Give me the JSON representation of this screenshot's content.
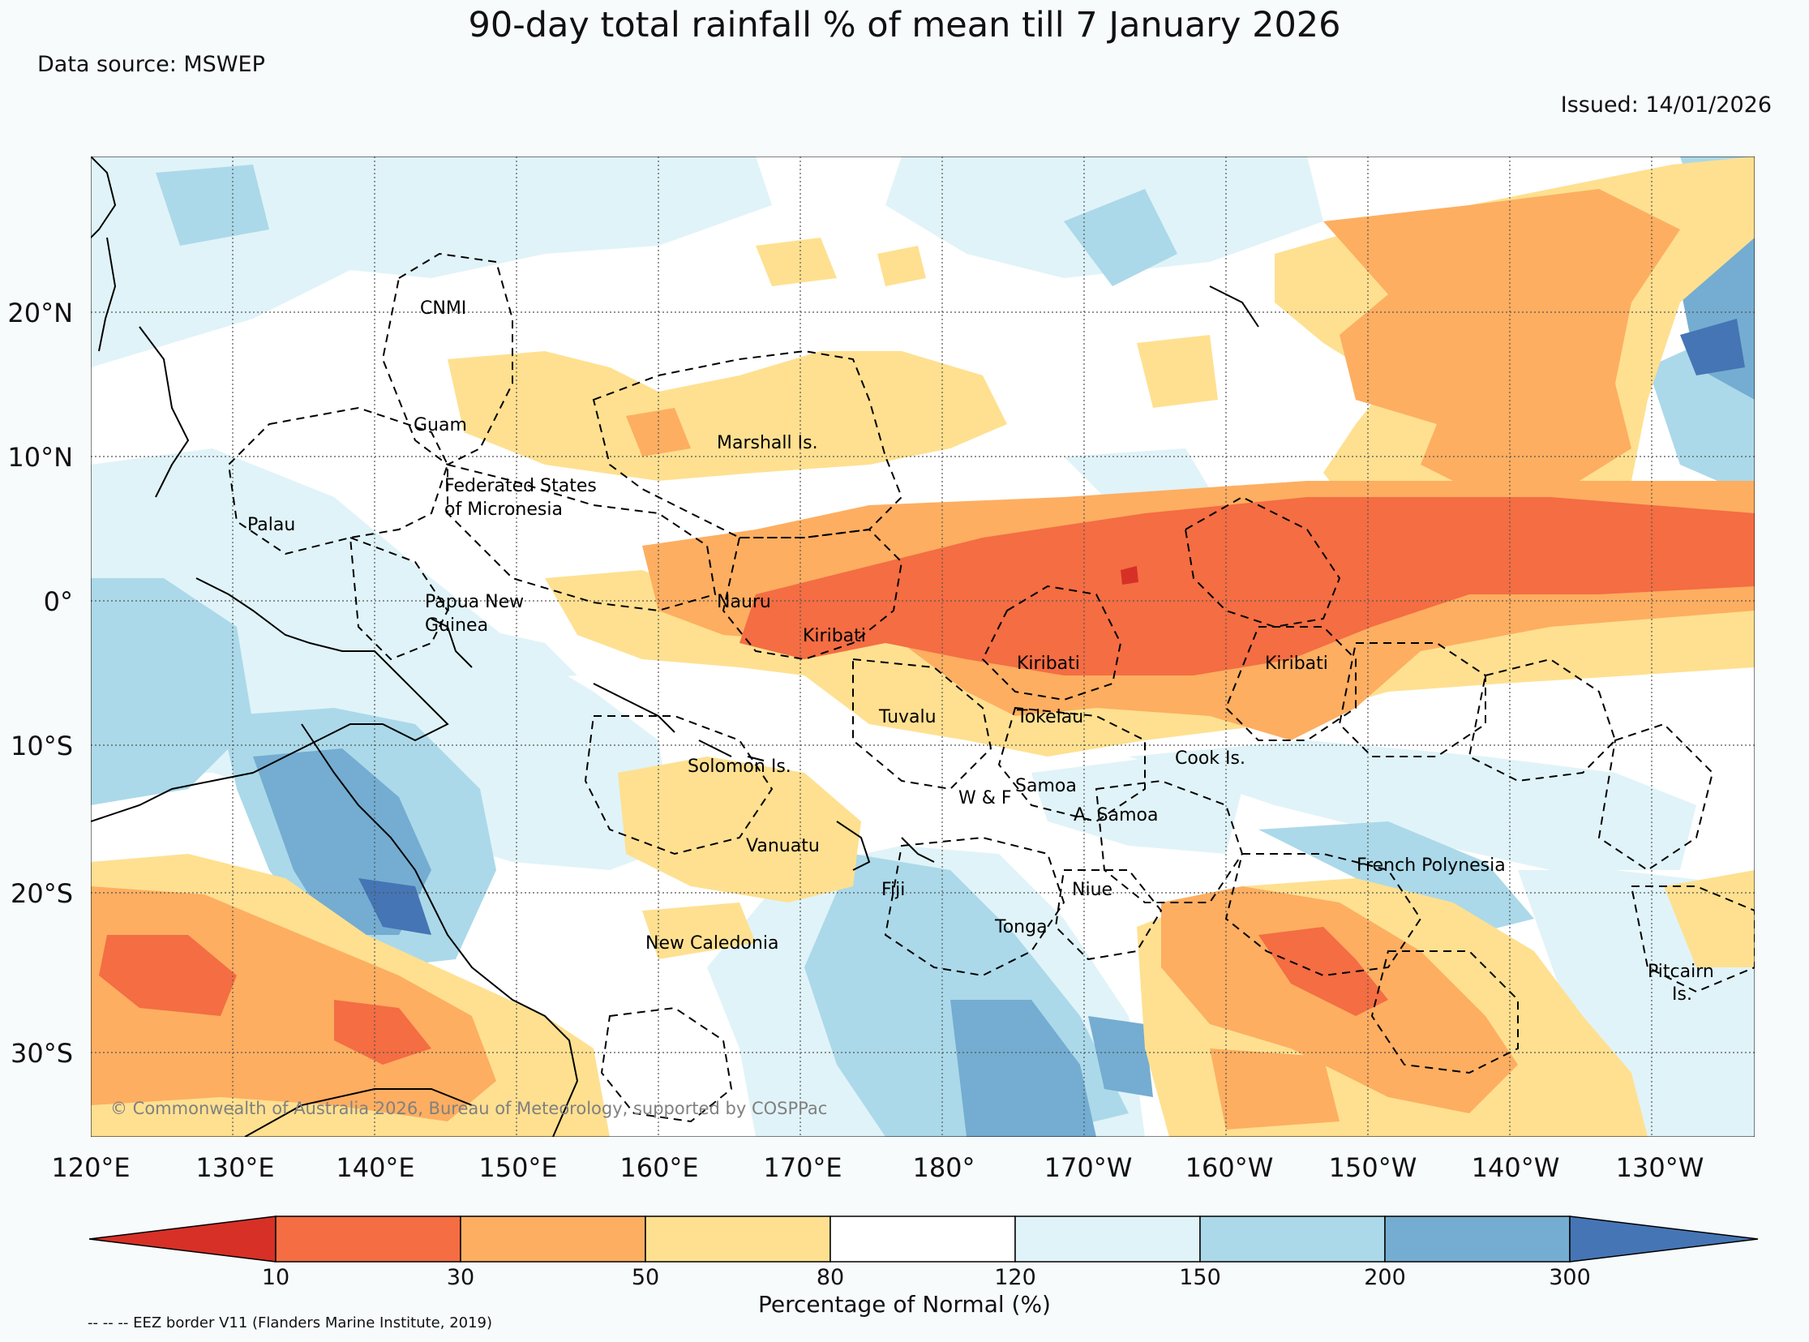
{
  "title": "90-day total rainfall % of mean till 7 January 2026",
  "data_source": "Data source: MSWEP",
  "issued": "Issued: 14/01/2026",
  "copyright": "© Commonwealth of Australia 2026, Bureau of Meteorology, supported by COSPPac",
  "eez_note": "-- -- -- EEZ border V11 (Flanders Marine Institute, 2019)",
  "latitude_labels": [
    "20°N",
    "10°N",
    "0°",
    "10°S",
    "20°S",
    "30°S"
  ],
  "longitude_labels": [
    "120°E",
    "130°E",
    "140°E",
    "150°E",
    "160°E",
    "170°E",
    "180°",
    "170°W",
    "160°W",
    "150°W",
    "140°W",
    "130°W"
  ],
  "place_labels": [
    "CNMI",
    "Guam",
    "Marshall Is.",
    "Federated States",
    "of Micronesia",
    "Palau",
    "Papua New",
    "Guinea",
    "Nauru",
    "Kiribati",
    "Kiribati",
    "Kiribati",
    "Tuvalu",
    "Tokelau",
    "Solomon Is.",
    "Cook Is.",
    "Samoa",
    "W & F",
    "A. Samoa",
    "Vanuatu",
    "French Polynesia",
    "Fiji",
    "Niue",
    "Tonga",
    "New Caledonia",
    "Pitcairn",
    "Is."
  ],
  "colorbar": {
    "title": "Percentage of Normal (%)",
    "ticks": [
      "10",
      "30",
      "50",
      "80",
      "120",
      "150",
      "200",
      "300"
    ],
    "colors": [
      "#d73027",
      "#f46d43",
      "#fdae61",
      "#fee090",
      "#ffffff",
      "#e0f3f8",
      "#abd9e9",
      "#74add1",
      "#4575b4"
    ]
  },
  "palette": {
    "background": "#f7fbfc",
    "land_outline": "#000000",
    "grid": "#555555"
  }
}
